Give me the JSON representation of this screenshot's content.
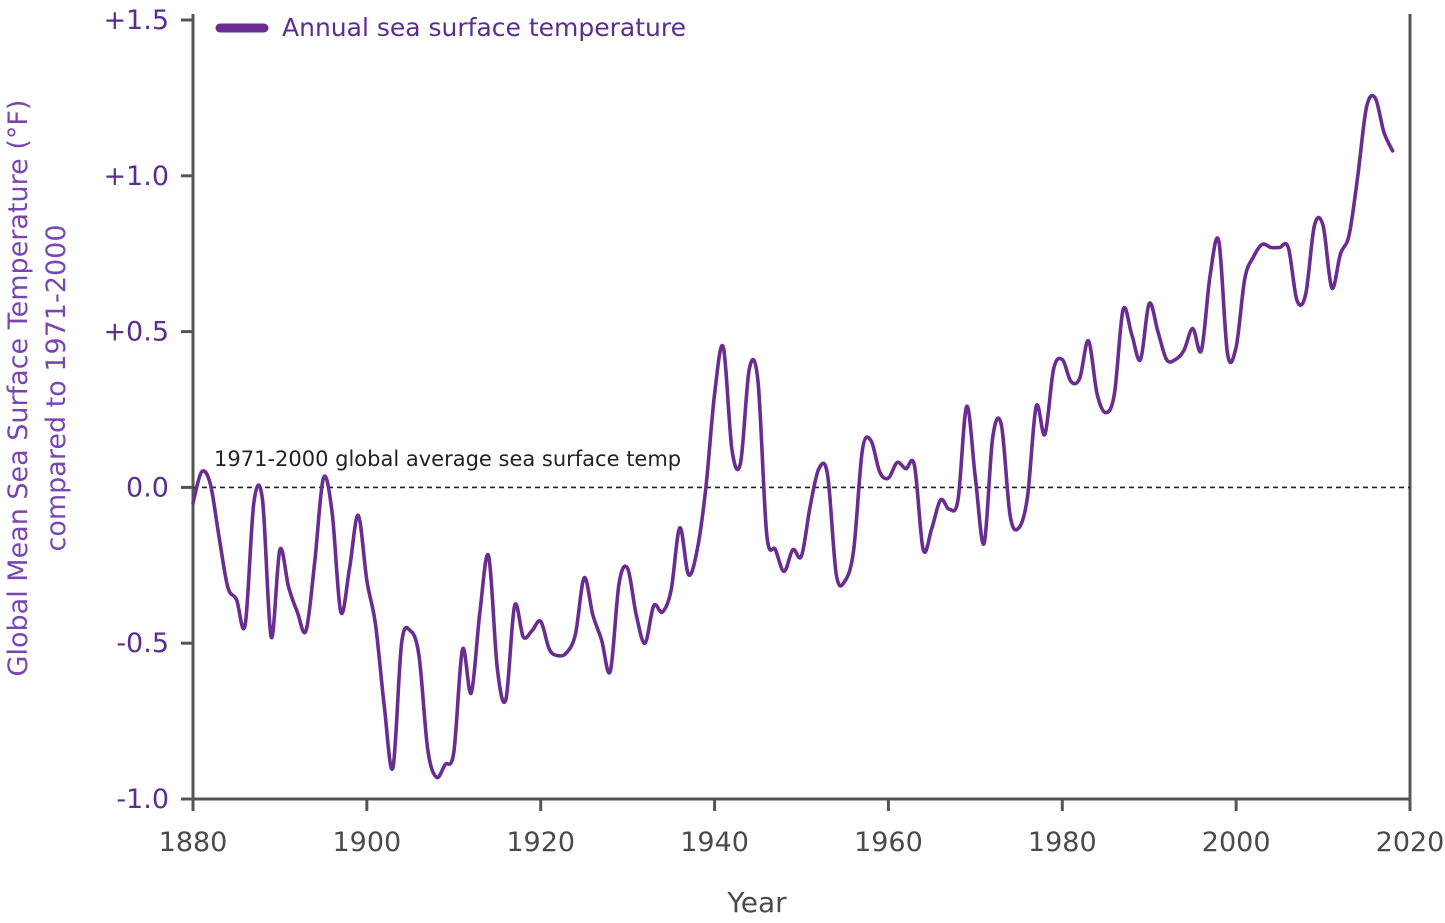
{
  "chart_data": {
    "type": "line",
    "xlabel": "Year",
    "ylabel_line1": "Global Mean Sea Surface Temperature (°F)",
    "ylabel_line2": "compared to 1971-2000",
    "xlim": [
      1880,
      2020
    ],
    "ylim": [
      -1.0,
      1.5
    ],
    "x_ticks": [
      1880,
      1900,
      1920,
      1940,
      1960,
      1980,
      2000,
      2020
    ],
    "x_tick_labels": [
      "1880",
      "1900",
      "1920",
      "1940",
      "1960",
      "1980",
      "2000",
      "2020"
    ],
    "y_ticks": [
      -1.0,
      -0.5,
      0.0,
      0.5,
      1.0,
      1.5
    ],
    "y_tick_labels": [
      "-1.0",
      "-0.5",
      "0.0",
      "+0.5",
      "+1.0",
      "+1.5"
    ],
    "grid": false,
    "legend": {
      "position": "top-left"
    },
    "reference_line": {
      "y": 0.0,
      "style": "dashed",
      "label": "1971-2000 global average sea surface temp"
    },
    "colors": {
      "series": "#6a2c91",
      "axis": "#555555",
      "reference": "#222222"
    },
    "series": [
      {
        "name": "Annual sea surface temperature",
        "x": [
          1880,
          1881,
          1882,
          1883,
          1884,
          1885,
          1886,
          1887,
          1888,
          1889,
          1890,
          1891,
          1892,
          1893,
          1894,
          1895,
          1896,
          1897,
          1898,
          1899,
          1900,
          1901,
          1902,
          1903,
          1904,
          1905,
          1906,
          1907,
          1908,
          1909,
          1910,
          1911,
          1912,
          1913,
          1914,
          1915,
          1916,
          1917,
          1918,
          1919,
          1920,
          1921,
          1922,
          1923,
          1924,
          1925,
          1926,
          1927,
          1928,
          1929,
          1930,
          1931,
          1932,
          1933,
          1934,
          1935,
          1936,
          1937,
          1938,
          1939,
          1940,
          1941,
          1942,
          1943,
          1944,
          1945,
          1946,
          1947,
          1948,
          1949,
          1950,
          1951,
          1952,
          1953,
          1954,
          1955,
          1956,
          1957,
          1958,
          1959,
          1960,
          1961,
          1962,
          1963,
          1964,
          1965,
          1966,
          1967,
          1968,
          1969,
          1970,
          1971,
          1972,
          1973,
          1974,
          1975,
          1976,
          1977,
          1978,
          1979,
          1980,
          1981,
          1982,
          1983,
          1984,
          1985,
          1986,
          1987,
          1988,
          1989,
          1990,
          1991,
          1992,
          1993,
          1994,
          1995,
          1996,
          1997,
          1998,
          1999,
          2000,
          2001,
          2002,
          2003,
          2004,
          2005,
          2006,
          2007,
          2008,
          2009,
          2010,
          2011,
          2012,
          2013,
          2014,
          2015,
          2016,
          2017,
          2018
        ],
        "y": [
          -0.05,
          0.05,
          0.01,
          -0.16,
          -0.32,
          -0.36,
          -0.44,
          -0.05,
          -0.04,
          -0.48,
          -0.2,
          -0.32,
          -0.4,
          -0.46,
          -0.24,
          0.03,
          -0.08,
          -0.4,
          -0.26,
          -0.09,
          -0.3,
          -0.44,
          -0.7,
          -0.9,
          -0.5,
          -0.46,
          -0.54,
          -0.84,
          -0.93,
          -0.89,
          -0.85,
          -0.52,
          -0.66,
          -0.4,
          -0.22,
          -0.58,
          -0.68,
          -0.38,
          -0.48,
          -0.46,
          -0.43,
          -0.52,
          -0.54,
          -0.53,
          -0.47,
          -0.29,
          -0.41,
          -0.49,
          -0.59,
          -0.31,
          -0.26,
          -0.41,
          -0.5,
          -0.38,
          -0.4,
          -0.33,
          -0.13,
          -0.28,
          -0.2,
          0.0,
          0.3,
          0.45,
          0.12,
          0.08,
          0.38,
          0.34,
          -0.15,
          -0.2,
          -0.27,
          -0.2,
          -0.22,
          -0.06,
          0.06,
          0.04,
          -0.28,
          -0.3,
          -0.2,
          0.12,
          0.15,
          0.05,
          0.03,
          0.08,
          0.06,
          0.07,
          -0.2,
          -0.13,
          -0.04,
          -0.07,
          -0.04,
          0.26,
          0.03,
          -0.18,
          0.16,
          0.2,
          -0.09,
          -0.13,
          -0.03,
          0.26,
          0.17,
          0.38,
          0.41,
          0.34,
          0.35,
          0.47,
          0.3,
          0.24,
          0.3,
          0.57,
          0.49,
          0.41,
          0.59,
          0.5,
          0.41,
          0.41,
          0.44,
          0.51,
          0.44,
          0.68,
          0.79,
          0.43,
          0.45,
          0.67,
          0.74,
          0.78,
          0.77,
          0.77,
          0.77,
          0.6,
          0.62,
          0.84,
          0.84,
          0.64,
          0.75,
          0.81,
          1.0,
          1.22,
          1.25,
          1.14,
          1.08
        ]
      }
    ]
  }
}
